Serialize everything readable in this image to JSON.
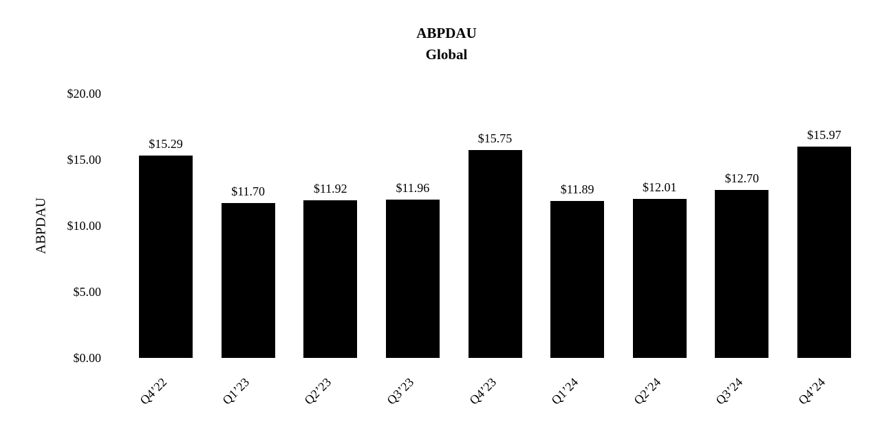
{
  "chart_data": {
    "type": "bar",
    "title": "ABPDAU",
    "subtitle": "Global",
    "ylabel": "ABPDAU",
    "xlabel": "",
    "categories": [
      "Q4’22",
      "Q1’23",
      "Q2’23",
      "Q3’23",
      "Q4’23",
      "Q1’24",
      "Q2’24",
      "Q3’24",
      "Q4’24"
    ],
    "values": [
      15.29,
      11.7,
      11.92,
      11.96,
      15.75,
      11.89,
      12.01,
      12.7,
      15.97
    ],
    "data_labels": [
      "$15.29",
      "$11.70",
      "$11.92",
      "$11.96",
      "$15.75",
      "$11.89",
      "$12.01",
      "$12.70",
      "$15.97"
    ],
    "y_ticks": [
      {
        "value": 0,
        "label": "$0.00"
      },
      {
        "value": 5,
        "label": "$5.00"
      },
      {
        "value": 10,
        "label": "$10.00"
      },
      {
        "value": 15,
        "label": "$15.00"
      },
      {
        "value": 20,
        "label": "$20.00"
      }
    ],
    "ylim": [
      0,
      20
    ],
    "grid": false,
    "legend": false,
    "bar_color": "#000000",
    "text_color": "#000000",
    "background_color": "#ffffff"
  }
}
